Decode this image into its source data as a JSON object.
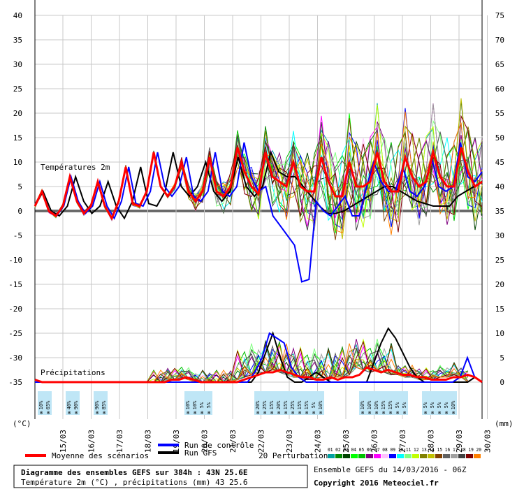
{
  "chart_data": {
    "type": "line",
    "temp_label": "Températures 2m",
    "precip_label": "Précipitations",
    "y_left": {
      "unit": "(°C)",
      "range": [
        -35,
        40
      ],
      "ticks": [
        "40",
        "35",
        "30",
        "25",
        "20",
        "15",
        "10",
        "5",
        "0",
        "-5",
        "-10",
        "-15",
        "-20",
        "-25",
        "-30",
        "-35"
      ]
    },
    "y_right": {
      "unit": "(mm)",
      "range": [
        0,
        75
      ],
      "ticks": [
        "75",
        "70",
        "65",
        "60",
        "55",
        "50",
        "45",
        "40",
        "35",
        "30",
        "25",
        "20",
        "15",
        "10",
        "5",
        "0"
      ]
    },
    "x_labels": [
      "15/03",
      "16/03",
      "17/03",
      "18/03",
      "19/03",
      "20/03",
      "21/03",
      "22/03",
      "23/03",
      "24/03",
      "25/03",
      "26/03",
      "27/03",
      "28/03",
      "29/03",
      "30/03"
    ],
    "snow_pct": [
      "10%",
      "65%",
      "40%",
      "90%",
      "90%",
      "85%",
      "10%",
      "10%",
      "5%",
      "5%",
      "20%",
      "25%",
      "15%",
      "20%",
      "15%",
      "25%",
      "15%",
      "15%",
      "5%",
      "10%",
      "10%",
      "10%",
      "10%",
      "15%",
      "15%",
      "5%",
      "5%",
      "5%",
      "5%",
      "5%",
      "5%",
      "10%"
    ],
    "mean_temp": [
      1,
      4,
      0,
      -1,
      1,
      7,
      2,
      -0.5,
      1,
      6,
      1,
      -1.5,
      2,
      9,
      1.5,
      1,
      4,
      12,
      5,
      3,
      5,
      10,
      4,
      2,
      4,
      11,
      4,
      3,
      5,
      13,
      8,
      5,
      3.5,
      12,
      7,
      6,
      5,
      10,
      5,
      4,
      4,
      11,
      6,
      3,
      3,
      10,
      5,
      5,
      6,
      12,
      6,
      4,
      4,
      11,
      7,
      5,
      6,
      12,
      7,
      5,
      5,
      13,
      8,
      5,
      6
    ],
    "control_temp": [
      1,
      4,
      0,
      -1,
      1,
      7,
      2,
      -0.5,
      1,
      6,
      1,
      -1.5,
      2,
      9,
      1.5,
      1,
      4,
      12,
      5,
      3,
      5,
      11,
      3,
      2,
      4,
      12,
      4,
      3,
      5,
      14,
      7,
      4,
      5,
      -1,
      -3,
      -5,
      -7,
      -14.5,
      -14,
      2,
      0,
      -1,
      1,
      3,
      -1,
      -1,
      5,
      10,
      6,
      4,
      4,
      9,
      4,
      3,
      5,
      11,
      5,
      4,
      5,
      14,
      7,
      6,
      8
    ],
    "gfs_temp": [
      1,
      4,
      0,
      -1,
      1,
      7,
      2,
      -0.5,
      1,
      6,
      1,
      -1.5,
      2,
      9,
      1.5,
      1,
      4,
      12,
      5,
      3,
      5,
      10,
      4,
      2,
      4,
      11,
      5,
      3,
      5,
      12,
      8,
      7,
      7,
      5,
      3,
      1,
      -0.5,
      -0.5,
      0,
      1,
      2,
      3,
      4,
      5,
      5,
      4,
      3,
      2,
      1.5,
      1,
      1,
      1,
      3,
      4,
      5,
      6
    ],
    "mean_precip": [
      0.5,
      0,
      0,
      0,
      0,
      0,
      0,
      0,
      0,
      0,
      0,
      0,
      0,
      0,
      0,
      0,
      0,
      0,
      0,
      0.5,
      0.5,
      1,
      0.5,
      0,
      0,
      0,
      0,
      0,
      0,
      0.5,
      1,
      1.5,
      2,
      2,
      2.5,
      2,
      1.5,
      1,
      1,
      0.5,
      0.5,
      1,
      0.5,
      1,
      1,
      1.5,
      3,
      2.5,
      2,
      2.5,
      2,
      1.5,
      1.5,
      1,
      1,
      0.5,
      0.5,
      0.5,
      1,
      1,
      1.5,
      1,
      0
    ],
    "control_precip": [
      0,
      0,
      0,
      0,
      0,
      0,
      0,
      0,
      0,
      0,
      0,
      0,
      0,
      0,
      0,
      0,
      0,
      0,
      0,
      0,
      0,
      0,
      0,
      0,
      0,
      0,
      0,
      0,
      0,
      0,
      2,
      5,
      10,
      9,
      8,
      3,
      1,
      0,
      0,
      0,
      0,
      0,
      0,
      0,
      0,
      0,
      0,
      0,
      0,
      0,
      0,
      0,
      0,
      0,
      0,
      0,
      0,
      0,
      1,
      5,
      1,
      0
    ],
    "gfs_precip": [
      0,
      0,
      0,
      0,
      0,
      0,
      0,
      0,
      0,
      0,
      0,
      0,
      0,
      0,
      0,
      0,
      0,
      0,
      0,
      0,
      0,
      0,
      0,
      0,
      0,
      0,
      0,
      0,
      0,
      0,
      0,
      2,
      6,
      10,
      5,
      1,
      0,
      0,
      1,
      2,
      1,
      0,
      0,
      0,
      0,
      0,
      0,
      4,
      8,
      11,
      9,
      6,
      3,
      1,
      0,
      0,
      0,
      0,
      0,
      0,
      0,
      1,
      0
    ]
  },
  "legend": {
    "mean_label": "Moyenne des scénarios",
    "control_label": "Run de contrôle",
    "gfs_label": "Run GFS",
    "perturb_label": "20 Perturbations",
    "perturb_numbers": "01 02 03 04 05 06 07 08 09 10 11 12 13 14 15 16 17 18 19 20",
    "colors": [
      "#00a0a0",
      "#008800",
      "#004400",
      "#00ff00",
      "#00c000",
      "#800080",
      "#ff00ff",
      "#ffc0ff",
      "#0000ff",
      "#00ffff",
      "#80ff80",
      "#c0ff00",
      "#808000",
      "#c0c000",
      "#804000",
      "#606060",
      "#a0a0a0",
      "#404040",
      "#800000",
      "#ff8000"
    ]
  },
  "footer": {
    "title": "Diagramme des ensembles GEFS sur 384h : 43N 25.6E",
    "subtitle": "Température 2m (°C) , précipitations (mm) 43 25.6",
    "run_info": "Ensemble GEFS du 14/03/2016 - 06Z",
    "copyright": "Copyright 2016 Meteociel.fr"
  }
}
